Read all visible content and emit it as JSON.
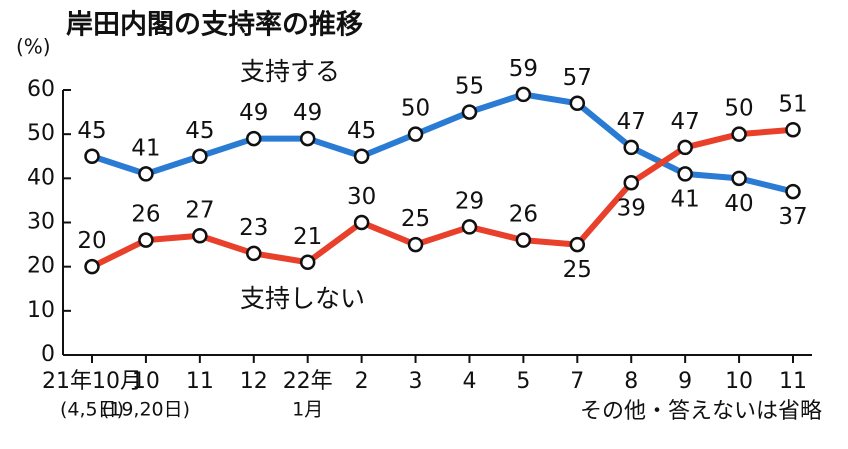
{
  "chart_data": {
    "type": "line",
    "title": "岸田内閣の支持率の推移",
    "y_label": "(%)",
    "note": "その他・答えないは省略",
    "categories": [
      "21年10月",
      "10",
      "11",
      "12",
      "22年",
      "2",
      "3",
      "4",
      "5",
      "7",
      "8",
      "9",
      "10",
      "11"
    ],
    "sublabels": [
      "(4,5日)",
      "(19,20日)",
      null,
      null,
      "1月",
      null,
      null,
      null,
      null,
      null,
      null,
      null,
      null,
      null
    ],
    "series": [
      {
        "name": "支持する",
        "color": "#2a7bd4",
        "values": [
          45,
          41,
          45,
          49,
          49,
          45,
          50,
          55,
          59,
          57,
          47,
          41,
          40,
          37
        ]
      },
      {
        "name": "支持しない",
        "color": "#e8402a",
        "values": [
          20,
          26,
          27,
          23,
          21,
          30,
          25,
          29,
          26,
          25,
          39,
          47,
          50,
          51
        ]
      }
    ],
    "ylim": [
      0,
      60
    ],
    "yticks": [
      0,
      10,
      20,
      30,
      40,
      50,
      60
    ]
  }
}
